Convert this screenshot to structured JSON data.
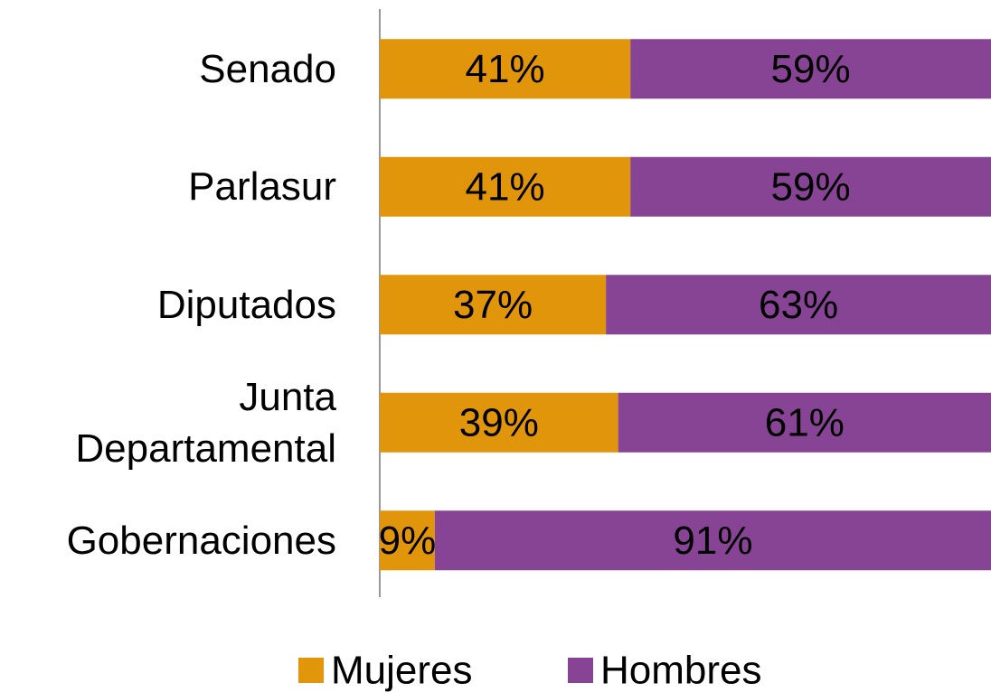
{
  "chart_data": {
    "type": "stacked_bar_horizontal",
    "categories": [
      "Senado",
      "Parlasur",
      "Diputados",
      "Junta Departamental",
      "Gobernaciones"
    ],
    "xlim": [
      0,
      100
    ],
    "series": [
      {
        "name": "Mujeres",
        "color": "#E0950A",
        "values": [
          41,
          41,
          37,
          39,
          9
        ],
        "value_labels": [
          "41%",
          "41%",
          "37%",
          "39%",
          "9%"
        ]
      },
      {
        "name": "Hombres",
        "color": "#874495",
        "values": [
          59,
          59,
          63,
          61,
          91
        ],
        "value_labels": [
          "59%",
          "59%",
          "63%",
          "61%",
          "91%"
        ]
      }
    ],
    "legend": "bottom"
  }
}
